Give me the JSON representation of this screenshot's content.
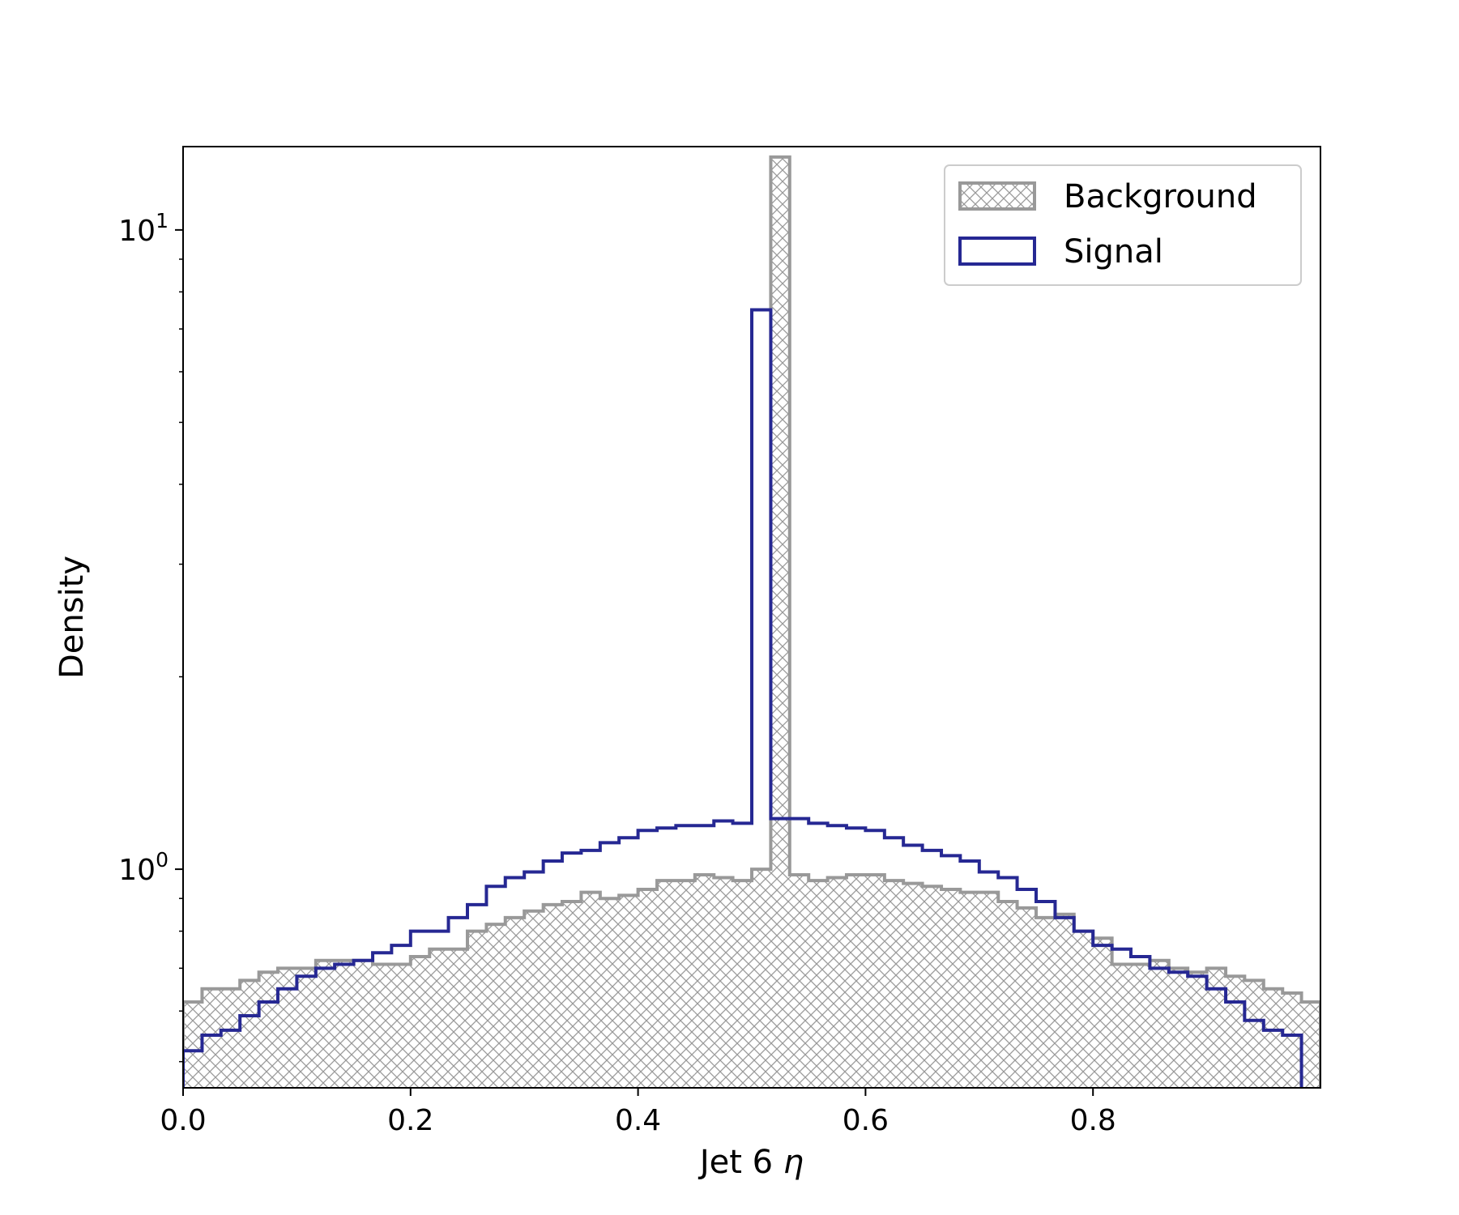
{
  "chart_data": {
    "type": "histogram",
    "xlabel": "Jet 6 η",
    "xlabel_main": "Jet 6 ",
    "xlabel_symbol": "η",
    "ylabel": "Density",
    "yscale": "log",
    "xlim": [
      0.0,
      1.0
    ],
    "ylim": [
      0.455,
      13.5
    ],
    "xticks": [
      {
        "value": 0.0,
        "label": "0.0"
      },
      {
        "value": 0.2,
        "label": "0.2"
      },
      {
        "value": 0.4,
        "label": "0.4"
      },
      {
        "value": 0.6,
        "label": "0.6"
      },
      {
        "value": 0.8,
        "label": "0.8"
      }
    ],
    "yticks": [
      {
        "value": 1,
        "base": "10",
        "exp": "0"
      },
      {
        "value": 10,
        "base": "10",
        "exp": "1"
      }
    ],
    "bin_edges": [
      0.0,
      0.0167,
      0.0333,
      0.05,
      0.0667,
      0.0833,
      0.1,
      0.1167,
      0.1333,
      0.15,
      0.1667,
      0.1833,
      0.2,
      0.2167,
      0.2333,
      0.25,
      0.2667,
      0.2833,
      0.3,
      0.3167,
      0.3333,
      0.35,
      0.3667,
      0.3833,
      0.4,
      0.4167,
      0.4333,
      0.45,
      0.4667,
      0.4833,
      0.5,
      0.5167,
      0.5333,
      0.55,
      0.5667,
      0.5833,
      0.6,
      0.6167,
      0.6333,
      0.65,
      0.6667,
      0.6833,
      0.7,
      0.7167,
      0.7333,
      0.75,
      0.7667,
      0.7833,
      0.8,
      0.8167,
      0.8333,
      0.85,
      0.8667,
      0.8833,
      0.9,
      0.9167,
      0.9333,
      0.95,
      0.9667,
      0.9833,
      1.0
    ],
    "series": [
      {
        "name": "Background",
        "style": "hatched",
        "color": "#999999",
        "values": [
          0.62,
          0.65,
          0.65,
          0.67,
          0.69,
          0.7,
          0.7,
          0.72,
          0.72,
          0.72,
          0.71,
          0.71,
          0.73,
          0.75,
          0.75,
          0.8,
          0.82,
          0.84,
          0.86,
          0.88,
          0.89,
          0.92,
          0.9,
          0.91,
          0.93,
          0.96,
          0.96,
          0.98,
          0.97,
          0.96,
          1.0,
          13.0,
          0.98,
          0.96,
          0.97,
          0.98,
          0.98,
          0.96,
          0.95,
          0.94,
          0.93,
          0.92,
          0.92,
          0.89,
          0.87,
          0.84,
          0.85,
          0.8,
          0.78,
          0.71,
          0.71,
          0.72,
          0.7,
          0.69,
          0.7,
          0.68,
          0.67,
          0.65,
          0.64,
          0.62
        ]
      },
      {
        "name": "Signal",
        "style": "step",
        "color": "#262893",
        "values": [
          0.52,
          0.55,
          0.56,
          0.59,
          0.62,
          0.65,
          0.68,
          0.7,
          0.71,
          0.72,
          0.74,
          0.76,
          0.8,
          0.8,
          0.84,
          0.88,
          0.94,
          0.97,
          0.99,
          1.03,
          1.06,
          1.07,
          1.1,
          1.12,
          1.15,
          1.16,
          1.17,
          1.17,
          1.19,
          1.18,
          7.5,
          1.2,
          1.2,
          1.18,
          1.17,
          1.16,
          1.15,
          1.12,
          1.09,
          1.07,
          1.05,
          1.03,
          0.99,
          0.97,
          0.93,
          0.89,
          0.84,
          0.8,
          0.76,
          0.75,
          0.73,
          0.7,
          0.69,
          0.68,
          0.65,
          0.62,
          0.58,
          0.56,
          0.55,
          0.45
        ]
      }
    ],
    "legend": {
      "position": "upper-right",
      "entries": [
        {
          "label": "Background",
          "style": "hatched",
          "color": "#999999"
        },
        {
          "label": "Signal",
          "style": "step",
          "color": "#262893"
        }
      ]
    },
    "grid": false
  }
}
